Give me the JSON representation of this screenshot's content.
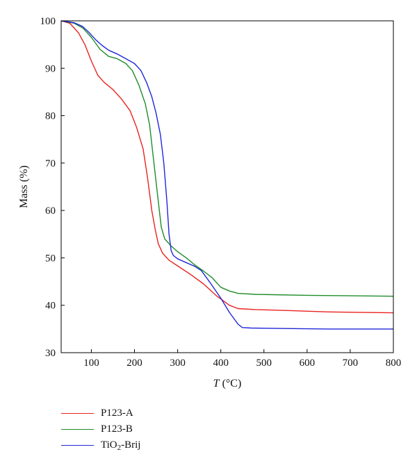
{
  "chart_data": {
    "type": "line",
    "xlabel_var": "T",
    "xlabel_unit": "(°C)",
    "ylabel": "Mass (%)",
    "xlim": [
      30,
      800
    ],
    "ylim": [
      30,
      100
    ],
    "xticks": [
      100,
      200,
      300,
      400,
      500,
      600,
      700,
      800
    ],
    "yticks": [
      30,
      40,
      50,
      60,
      70,
      80,
      90,
      100
    ],
    "grid": false,
    "legend_position": "bottom-left",
    "series": [
      {
        "name": "P123-A",
        "color": "#e8221e",
        "points": [
          [
            30,
            100
          ],
          [
            50,
            99.5
          ],
          [
            70,
            97.5
          ],
          [
            85,
            95
          ],
          [
            100,
            91.5
          ],
          [
            115,
            88.5
          ],
          [
            130,
            87
          ],
          [
            150,
            85.5
          ],
          [
            170,
            83.5
          ],
          [
            190,
            81
          ],
          [
            205,
            77.5
          ],
          [
            220,
            73
          ],
          [
            230,
            67
          ],
          [
            240,
            60
          ],
          [
            248,
            56
          ],
          [
            255,
            53
          ],
          [
            265,
            51
          ],
          [
            280,
            49.5
          ],
          [
            300,
            48.3
          ],
          [
            330,
            46.5
          ],
          [
            360,
            44.5
          ],
          [
            390,
            42
          ],
          [
            420,
            40
          ],
          [
            440,
            39.3
          ],
          [
            480,
            39.1
          ],
          [
            550,
            38.9
          ],
          [
            650,
            38.6
          ],
          [
            800,
            38.4
          ]
        ]
      },
      {
        "name": "P123-B",
        "color": "#1e8c2a",
        "points": [
          [
            30,
            100
          ],
          [
            60,
            99.5
          ],
          [
            80,
            98.5
          ],
          [
            100,
            96.5
          ],
          [
            120,
            94
          ],
          [
            140,
            92.5
          ],
          [
            160,
            92
          ],
          [
            180,
            91
          ],
          [
            195,
            89.5
          ],
          [
            210,
            86.5
          ],
          [
            225,
            82.5
          ],
          [
            235,
            78
          ],
          [
            245,
            70
          ],
          [
            255,
            62
          ],
          [
            262,
            56.5
          ],
          [
            270,
            54
          ],
          [
            285,
            52.5
          ],
          [
            300,
            51.3
          ],
          [
            320,
            50
          ],
          [
            340,
            48.5
          ],
          [
            360,
            47.2
          ],
          [
            380,
            45.8
          ],
          [
            400,
            43.8
          ],
          [
            420,
            43
          ],
          [
            440,
            42.5
          ],
          [
            480,
            42.3
          ],
          [
            600,
            42.1
          ],
          [
            800,
            41.9
          ]
        ]
      },
      {
        "name": "TiO₂-Brij",
        "sub_name": {
          "main": "TiO",
          "sub": "2",
          "rest": "-Brij"
        },
        "color": "#2026d9",
        "points": [
          [
            30,
            100
          ],
          [
            60,
            99.6
          ],
          [
            80,
            98.8
          ],
          [
            95,
            97.5
          ],
          [
            110,
            96
          ],
          [
            125,
            94.8
          ],
          [
            140,
            93.8
          ],
          [
            160,
            93
          ],
          [
            180,
            92
          ],
          [
            200,
            91
          ],
          [
            215,
            89.5
          ],
          [
            228,
            87
          ],
          [
            240,
            84
          ],
          [
            250,
            80.5
          ],
          [
            260,
            76
          ],
          [
            268,
            70
          ],
          [
            275,
            62
          ],
          [
            280,
            55
          ],
          [
            285,
            51.5
          ],
          [
            290,
            50.5
          ],
          [
            300,
            49.8
          ],
          [
            320,
            49
          ],
          [
            340,
            48.2
          ],
          [
            355,
            47.3
          ],
          [
            375,
            44.8
          ],
          [
            400,
            41.5
          ],
          [
            420,
            38.5
          ],
          [
            440,
            36
          ],
          [
            450,
            35.3
          ],
          [
            470,
            35.2
          ],
          [
            550,
            35.1
          ],
          [
            650,
            35
          ],
          [
            800,
            35
          ]
        ]
      }
    ]
  }
}
